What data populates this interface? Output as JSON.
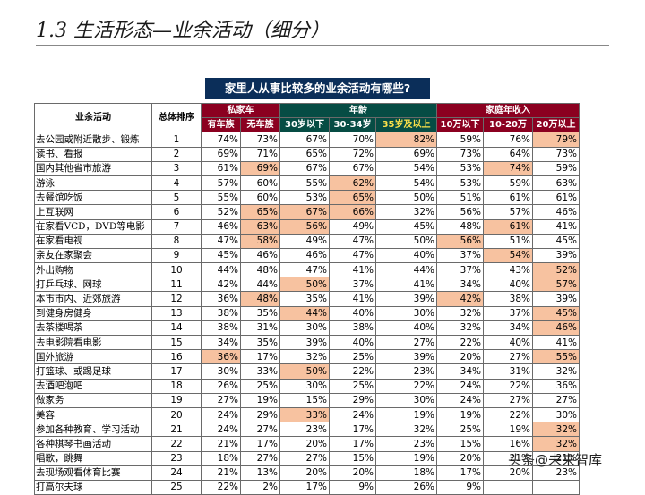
{
  "title": "1.3 生活形态—业余活动（细分）",
  "question": "家里人从事比较多的业余活动有哪些?",
  "header": {
    "activity": "业余活动",
    "rank": "总体排序",
    "group_car": "私家车",
    "group_age": "年龄",
    "group_income": "家庭年收入",
    "sub_car": [
      "有车族",
      "无车族"
    ],
    "sub_age": [
      "30岁以下",
      "30-34岁",
      "35岁及以上"
    ],
    "sub_income": [
      "10万以下",
      "10-20万",
      "20万以上"
    ]
  },
  "highlight_color": "#f7c2a0",
  "rows": [
    {
      "activity": "去公园或附近散步、锻炼",
      "rank": "1",
      "values": [
        "74%",
        "73%",
        "67%",
        "70%",
        "82%",
        "59%",
        "76%",
        "79%"
      ],
      "hl": [
        4,
        7
      ]
    },
    {
      "activity": "读书、看报",
      "rank": "2",
      "values": [
        "69%",
        "71%",
        "65%",
        "72%",
        "69%",
        "73%",
        "64%",
        "73%"
      ],
      "hl": []
    },
    {
      "activity": "国内其他省市旅游",
      "rank": "3",
      "values": [
        "61%",
        "69%",
        "67%",
        "67%",
        "54%",
        "53%",
        "74%",
        "59%"
      ],
      "hl": [
        1,
        6
      ]
    },
    {
      "activity": "游泳",
      "rank": "4",
      "values": [
        "57%",
        "60%",
        "55%",
        "62%",
        "54%",
        "53%",
        "59%",
        "63%"
      ],
      "hl": [
        3
      ]
    },
    {
      "activity": "去餐馆吃饭",
      "rank": "5",
      "values": [
        "55%",
        "60%",
        "53%",
        "65%",
        "50%",
        "51%",
        "61%",
        "61%"
      ],
      "hl": [
        3
      ]
    },
    {
      "activity": "上互联网",
      "rank": "6",
      "values": [
        "52%",
        "65%",
        "67%",
        "66%",
        "32%",
        "56%",
        "57%",
        "46%"
      ],
      "hl": [
        1,
        2,
        3
      ]
    },
    {
      "activity": "在家看VCD，DVD等电影",
      "rank": "7",
      "values": [
        "46%",
        "63%",
        "56%",
        "49%",
        "45%",
        "48%",
        "61%",
        "41%"
      ],
      "hl": [
        1,
        2,
        6
      ]
    },
    {
      "activity": "在家看电视",
      "rank": "8",
      "values": [
        "47%",
        "58%",
        "49%",
        "47%",
        "50%",
        "56%",
        "51%",
        "45%"
      ],
      "hl": [
        1,
        5
      ]
    },
    {
      "activity": "亲友在家聚会",
      "rank": "9",
      "values": [
        "45%",
        "46%",
        "46%",
        "47%",
        "40%",
        "37%",
        "54%",
        "39%"
      ],
      "hl": [
        6
      ]
    },
    {
      "activity": "外出购物",
      "rank": "10",
      "values": [
        "44%",
        "48%",
        "47%",
        "41%",
        "44%",
        "37%",
        "43%",
        "52%"
      ],
      "hl": [
        7
      ]
    },
    {
      "activity": "打乒乓球、网球",
      "rank": "11",
      "values": [
        "42%",
        "44%",
        "50%",
        "37%",
        "41%",
        "34%",
        "40%",
        "57%"
      ],
      "hl": [
        2,
        7
      ]
    },
    {
      "activity": "本市市内、近郊旅游",
      "rank": "12",
      "values": [
        "36%",
        "48%",
        "35%",
        "41%",
        "39%",
        "42%",
        "38%",
        "39%"
      ],
      "hl": [
        1,
        5
      ]
    },
    {
      "activity": "到健身房健身",
      "rank": "13",
      "values": [
        "38%",
        "35%",
        "44%",
        "40%",
        "30%",
        "32%",
        "37%",
        "45%"
      ],
      "hl": [
        2,
        7
      ]
    },
    {
      "activity": "去茶楼喝茶",
      "rank": "14",
      "values": [
        "38%",
        "31%",
        "30%",
        "38%",
        "40%",
        "32%",
        "34%",
        "46%"
      ],
      "hl": [
        7
      ]
    },
    {
      "activity": "去电影院看电影",
      "rank": "15",
      "values": [
        "34%",
        "35%",
        "39%",
        "40%",
        "27%",
        "22%",
        "40%",
        "41%"
      ],
      "hl": []
    },
    {
      "activity": "国外旅游",
      "rank": "16",
      "values": [
        "36%",
        "17%",
        "32%",
        "25%",
        "39%",
        "20%",
        "27%",
        "55%"
      ],
      "hl": [
        0,
        7
      ]
    },
    {
      "activity": "打篮球、或踢足球",
      "rank": "17",
      "values": [
        "30%",
        "33%",
        "50%",
        "22%",
        "23%",
        "34%",
        "31%",
        "32%"
      ],
      "hl": [
        2
      ]
    },
    {
      "activity": "去酒吧泡吧",
      "rank": "18",
      "values": [
        "26%",
        "25%",
        "30%",
        "25%",
        "22%",
        "24%",
        "22%",
        "36%"
      ],
      "hl": []
    },
    {
      "activity": "做家务",
      "rank": "19",
      "values": [
        "27%",
        "19%",
        "15%",
        "29%",
        "30%",
        "24%",
        "27%",
        "27%"
      ],
      "hl": []
    },
    {
      "activity": "美容",
      "rank": "20",
      "values": [
        "24%",
        "29%",
        "33%",
        "24%",
        "19%",
        "19%",
        "22%",
        "30%"
      ],
      "hl": [
        2
      ]
    },
    {
      "activity": "参加各种教育、学习活动",
      "rank": "21",
      "values": [
        "24%",
        "27%",
        "23%",
        "17%",
        "32%",
        "25%",
        "19%",
        "32%"
      ],
      "hl": [
        7
      ]
    },
    {
      "activity": "各种棋琴书画活动",
      "rank": "22",
      "values": [
        "21%",
        "17%",
        "20%",
        "17%",
        "23%",
        "15%",
        "16%",
        "32%"
      ],
      "hl": [
        7
      ]
    },
    {
      "activity": "唱歌，跳舞",
      "rank": "23",
      "values": [
        "18%",
        "27%",
        "27%",
        "15%",
        "19%",
        "20%",
        "21%",
        "21%"
      ],
      "hl": []
    },
    {
      "activity": "去现场观看体育比赛",
      "rank": "24",
      "values": [
        "21%",
        "13%",
        "20%",
        "20%",
        "18%",
        "17%",
        "20%",
        "23%"
      ],
      "hl": []
    },
    {
      "activity": "打高尔夫球",
      "rank": "25",
      "values": [
        "22%",
        "2%",
        "17%",
        "9%",
        "26%",
        "9%",
        "",
        ""
      ],
      "hl": []
    }
  ],
  "watermark": {
    "prefix": "头条",
    "text": "@未来智库"
  }
}
